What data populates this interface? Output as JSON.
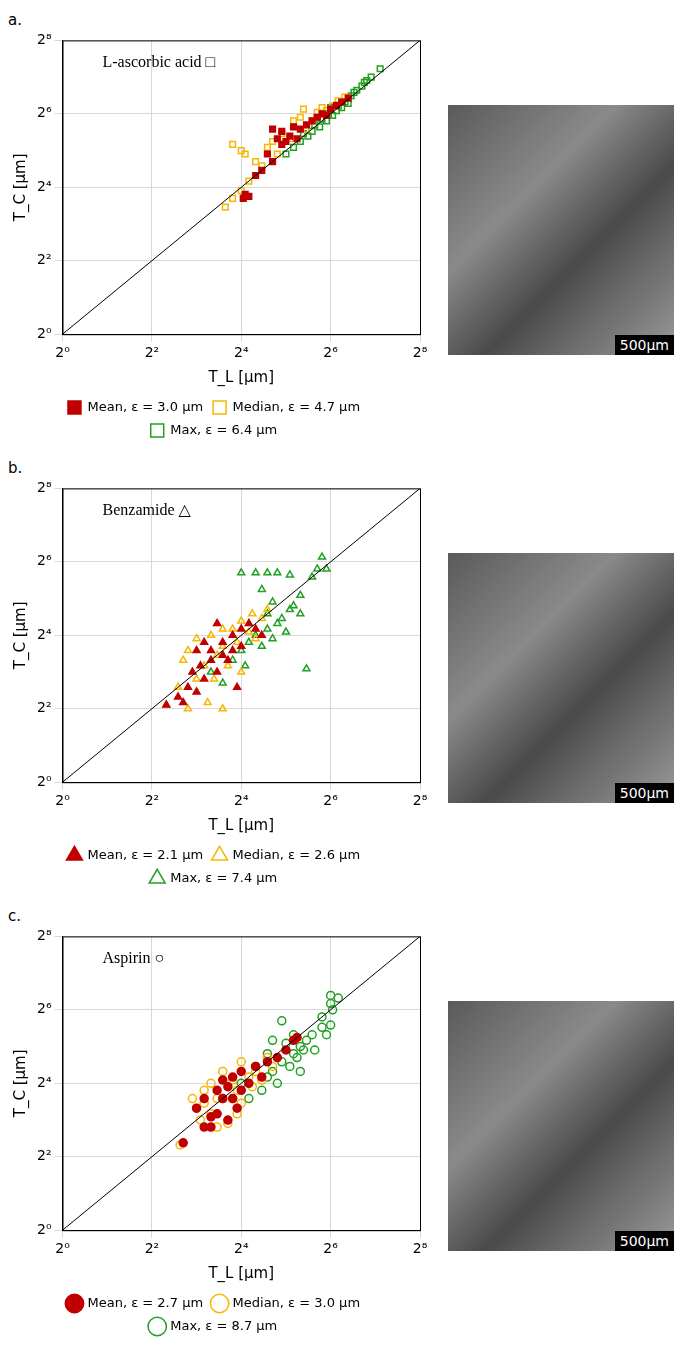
{
  "chart_data": [
    {
      "type": "scatter",
      "panel": "a.",
      "annotation": "L-ascorbic acid □",
      "x_label": "T_L [µm]",
      "y_label": "T_C [µm]",
      "log": true,
      "grid": true,
      "legend": "bottom",
      "xlim": [
        1,
        256
      ],
      "ylim": [
        1,
        256
      ],
      "xticks": [
        {
          "value": 1,
          "label": "2⁰"
        },
        {
          "value": 4,
          "label": "2²"
        },
        {
          "value": 16,
          "label": "2⁴"
        },
        {
          "value": 64,
          "label": "2⁶"
        },
        {
          "value": 256,
          "label": "2⁸"
        }
      ],
      "yticks": [
        {
          "value": 1,
          "label": "2⁰"
        },
        {
          "value": 4,
          "label": "2²"
        },
        {
          "value": 16,
          "label": "2⁴"
        },
        {
          "value": 64,
          "label": "2⁶"
        },
        {
          "value": 256,
          "label": "2⁸"
        }
      ],
      "diagonal": {
        "x": [
          1,
          256
        ],
        "y": [
          1,
          256
        ],
        "color": "#000000"
      },
      "image_scale_bar": "500µm",
      "series": [
        {
          "name": "Mean, ε = 3.0 µm",
          "color": "#c00000",
          "marker": "square_filled",
          "x": [
            16.5,
            17,
            18,
            20,
            22,
            24,
            26,
            28,
            30,
            32,
            34,
            36,
            38,
            40,
            44,
            48,
            52,
            56,
            60,
            64,
            70,
            76,
            84,
            30,
            26
          ],
          "y": [
            13,
            14,
            13.5,
            20,
            22,
            30,
            26,
            40,
            36,
            38,
            42,
            50,
            40,
            48,
            52,
            56,
            60,
            64,
            62,
            70,
            75,
            80,
            86,
            46,
            48
          ]
        },
        {
          "name": "Median, ε = 4.7 µm",
          "color": "#f5b800",
          "marker": "square_open",
          "x": [
            12.5,
            14,
            16,
            18,
            16,
            17,
            14,
            20,
            22,
            24,
            28,
            30,
            34,
            36,
            40,
            44,
            48,
            52,
            56,
            60,
            66,
            72,
            80,
            42,
            26
          ],
          "y": [
            11,
            13,
            15,
            18,
            32,
            30,
            36,
            26,
            24,
            34,
            30,
            44,
            40,
            56,
            60,
            48,
            56,
            66,
            72,
            68,
            74,
            82,
            88,
            70,
            38
          ]
        },
        {
          "name": "Max, ε = 6.4 µm",
          "color": "#22a022",
          "marker": "square_open",
          "x": [
            32,
            36,
            40,
            42,
            45,
            48,
            50,
            54,
            56,
            60,
            62,
            66,
            70,
            72,
            76,
            80,
            84,
            88,
            92,
            96,
            104,
            112,
            120,
            138,
            108,
            64,
            52
          ],
          "y": [
            30,
            34,
            38,
            44,
            42,
            46,
            52,
            50,
            58,
            56,
            64,
            62,
            68,
            74,
            72,
            80,
            78,
            90,
            96,
            100,
            108,
            120,
            128,
            150,
            116,
            72,
            60
          ]
        }
      ]
    },
    {
      "type": "scatter",
      "panel": "b.",
      "annotation": "Benzamide △",
      "x_label": "T_L [µm]",
      "y_label": "T_C [µm]",
      "log": true,
      "grid": true,
      "legend": "bottom",
      "xlim": [
        1,
        256
      ],
      "ylim": [
        1,
        256
      ],
      "xticks": [
        {
          "value": 1,
          "label": "2⁰"
        },
        {
          "value": 4,
          "label": "2²"
        },
        {
          "value": 16,
          "label": "2⁴"
        },
        {
          "value": 64,
          "label": "2⁶"
        },
        {
          "value": 256,
          "label": "2⁸"
        }
      ],
      "yticks": [
        {
          "value": 1,
          "label": "2⁰"
        },
        {
          "value": 4,
          "label": "2²"
        },
        {
          "value": 16,
          "label": "2⁴"
        },
        {
          "value": 64,
          "label": "2⁶"
        },
        {
          "value": 256,
          "label": "2⁸"
        }
      ],
      "diagonal": {
        "x": [
          1,
          256
        ],
        "y": [
          1,
          256
        ],
        "color": "#000000"
      },
      "image_scale_bar": "500µm",
      "series": [
        {
          "name": "Mean, ε = 2.1 µm",
          "color": "#c00000",
          "marker": "triangle_filled",
          "x": [
            5,
            6,
            7,
            7.5,
            8,
            8.5,
            9,
            10,
            10,
            11,
            12,
            12,
            13,
            14,
            14,
            16,
            16,
            18,
            20,
            22,
            8,
            9,
            6.5,
            11,
            15
          ],
          "y": [
            4.3,
            5,
            6,
            8,
            5.5,
            9,
            7,
            10,
            12,
            8,
            14,
            11,
            10,
            16,
            12,
            18,
            13,
            20,
            18,
            16,
            12,
            14,
            4.5,
            20,
            6
          ]
        },
        {
          "name": "Median, ε = 2.6 µm",
          "color": "#f5b800",
          "marker": "triangle_open",
          "x": [
            5,
            6,
            6.5,
            7,
            7,
            8,
            8,
            9,
            9.5,
            10,
            10.5,
            11,
            12,
            12,
            13,
            14,
            15,
            16,
            18,
            19,
            20,
            22,
            24,
            12,
            16
          ],
          "y": [
            4.3,
            6,
            10,
            12,
            4,
            7,
            15,
            9,
            4.5,
            16,
            7,
            11,
            4,
            13,
            9,
            18,
            14,
            21,
            17,
            24,
            15,
            22,
            26,
            18,
            8
          ]
        },
        {
          "name": "Max, ε = 7.4 µm",
          "color": "#22a022",
          "marker": "triangle_open",
          "x": [
            10,
            12,
            14,
            16,
            17,
            18,
            20,
            22,
            24,
            24,
            26,
            28,
            30,
            32,
            34,
            36,
            40,
            40,
            44,
            20,
            24,
            28,
            34,
            16,
            48,
            52,
            56,
            60,
            22,
            26
          ],
          "y": [
            8,
            6.5,
            10,
            12,
            9,
            14,
            16,
            13,
            18,
            24,
            15,
            20,
            22,
            17,
            26,
            28,
            24,
            34,
            8.5,
            52,
            52,
            52,
            50,
            52,
            48,
            56,
            70,
            56,
            38,
            30
          ]
        }
      ]
    },
    {
      "type": "scatter",
      "panel": "c.",
      "annotation": "Aspirin ○",
      "x_label": "T_L [µm]",
      "y_label": "T_C [µm]",
      "log": true,
      "grid": true,
      "legend": "bottom",
      "xlim": [
        1,
        256
      ],
      "ylim": [
        1,
        256
      ],
      "xticks": [
        {
          "value": 1,
          "label": "2⁰"
        },
        {
          "value": 4,
          "label": "2²"
        },
        {
          "value": 16,
          "label": "2⁴"
        },
        {
          "value": 64,
          "label": "2⁶"
        },
        {
          "value": 256,
          "label": "2⁸"
        }
      ],
      "yticks": [
        {
          "value": 1,
          "label": "2⁰"
        },
        {
          "value": 4,
          "label": "2²"
        },
        {
          "value": 16,
          "label": "2⁴"
        },
        {
          "value": 64,
          "label": "2⁶"
        },
        {
          "value": 256,
          "label": "2⁸"
        }
      ],
      "diagonal": {
        "x": [
          1,
          256
        ],
        "y": [
          1,
          256
        ],
        "color": "#000000"
      },
      "image_scale_bar": "500µm",
      "series": [
        {
          "name": "Mean, ε = 2.7 µm",
          "color": "#c00000",
          "marker": "circle_filled",
          "x": [
            6.5,
            8,
            9,
            10,
            11,
            11,
            12,
            12,
            13,
            14,
            14,
            15,
            16,
            16,
            18,
            20,
            22,
            24,
            28,
            32,
            36,
            38,
            10,
            9,
            13
          ],
          "y": [
            5.2,
            10,
            12,
            7,
            9,
            14,
            12,
            17,
            8,
            12,
            18,
            10,
            14,
            20,
            16,
            22,
            18,
            24,
            26,
            30,
            36,
            38,
            8.5,
            7,
            15
          ]
        },
        {
          "name": "Median, ε = 3.0 µm",
          "color": "#f5b800",
          "marker": "circle_open",
          "x": [
            6.2,
            7.5,
            8,
            8.5,
            9,
            10,
            10,
            11,
            12,
            12,
            13,
            14,
            15,
            16,
            16,
            18,
            19,
            20,
            22,
            24,
            26,
            14,
            11,
            9,
            15
          ],
          "y": [
            5,
            12,
            10,
            8,
            14,
            9,
            16,
            7,
            12,
            20,
            7.5,
            17,
            14,
            24,
            11,
            18,
            15,
            20,
            17,
            26,
            22,
            12,
            12,
            11,
            9
          ]
        },
        {
          "name": "Max, ε = 8.7 µm",
          "color": "#22a022",
          "marker": "circle_open",
          "x": [
            16,
            18,
            20,
            22,
            24,
            24,
            26,
            28,
            30,
            32,
            34,
            36,
            38,
            40,
            40,
            42,
            44,
            48,
            50,
            56,
            60,
            64,
            64,
            64,
            66,
            72,
            56,
            30,
            26,
            36
          ],
          "y": [
            16,
            12,
            22,
            14,
            18,
            28,
            20,
            16,
            24,
            34,
            22,
            28,
            26,
            32,
            20,
            30,
            36,
            40,
            30,
            46,
            40,
            48,
            72,
            84,
            64,
            80,
            56,
            52,
            36,
            40
          ]
        }
      ]
    }
  ]
}
